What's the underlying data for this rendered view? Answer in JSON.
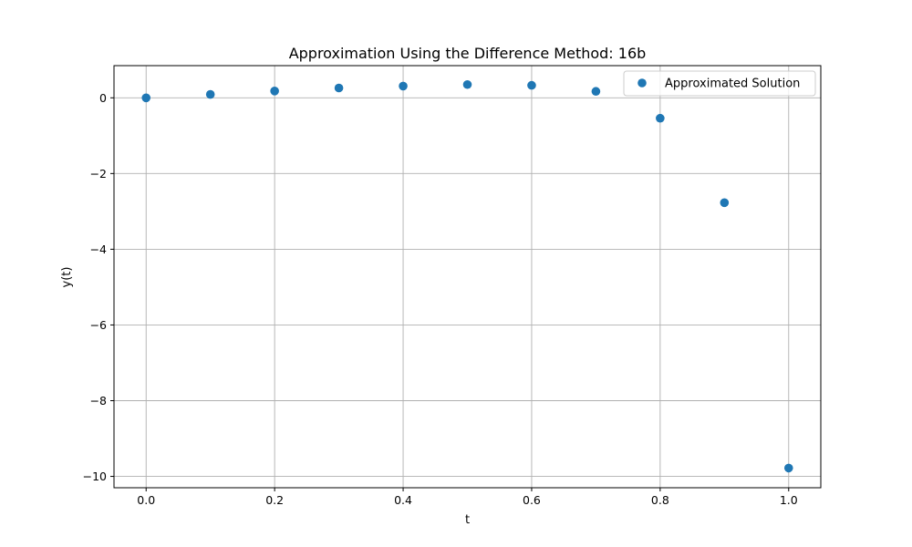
{
  "chart_data": {
    "type": "scatter",
    "title": "Approximation Using the Difference Method: 16b",
    "xlabel": "t",
    "ylabel": "y(t)",
    "xlim": [
      -0.05,
      1.05
    ],
    "ylim": [
      -10.3,
      0.85
    ],
    "xticks": [
      0.0,
      0.2,
      0.4,
      0.6,
      0.8,
      1.0
    ],
    "xtick_labels": [
      "0.0",
      "0.2",
      "0.4",
      "0.6",
      "0.8",
      "1.0"
    ],
    "yticks": [
      0,
      -2,
      -4,
      -6,
      -8,
      -10
    ],
    "ytick_labels": [
      "0",
      "−2",
      "−4",
      "−6",
      "−8",
      "−10"
    ],
    "grid": true,
    "legend_position": "top-right",
    "series": [
      {
        "name": "Approximated Solution",
        "color": "#1f77b4",
        "x": [
          0.0,
          0.1,
          0.2,
          0.3,
          0.4,
          0.5,
          0.6,
          0.7,
          0.8,
          0.9,
          1.0
        ],
        "y": [
          0.0,
          0.09,
          0.18,
          0.26,
          0.31,
          0.35,
          0.33,
          0.17,
          -0.54,
          -2.77,
          -9.78
        ]
      }
    ]
  }
}
